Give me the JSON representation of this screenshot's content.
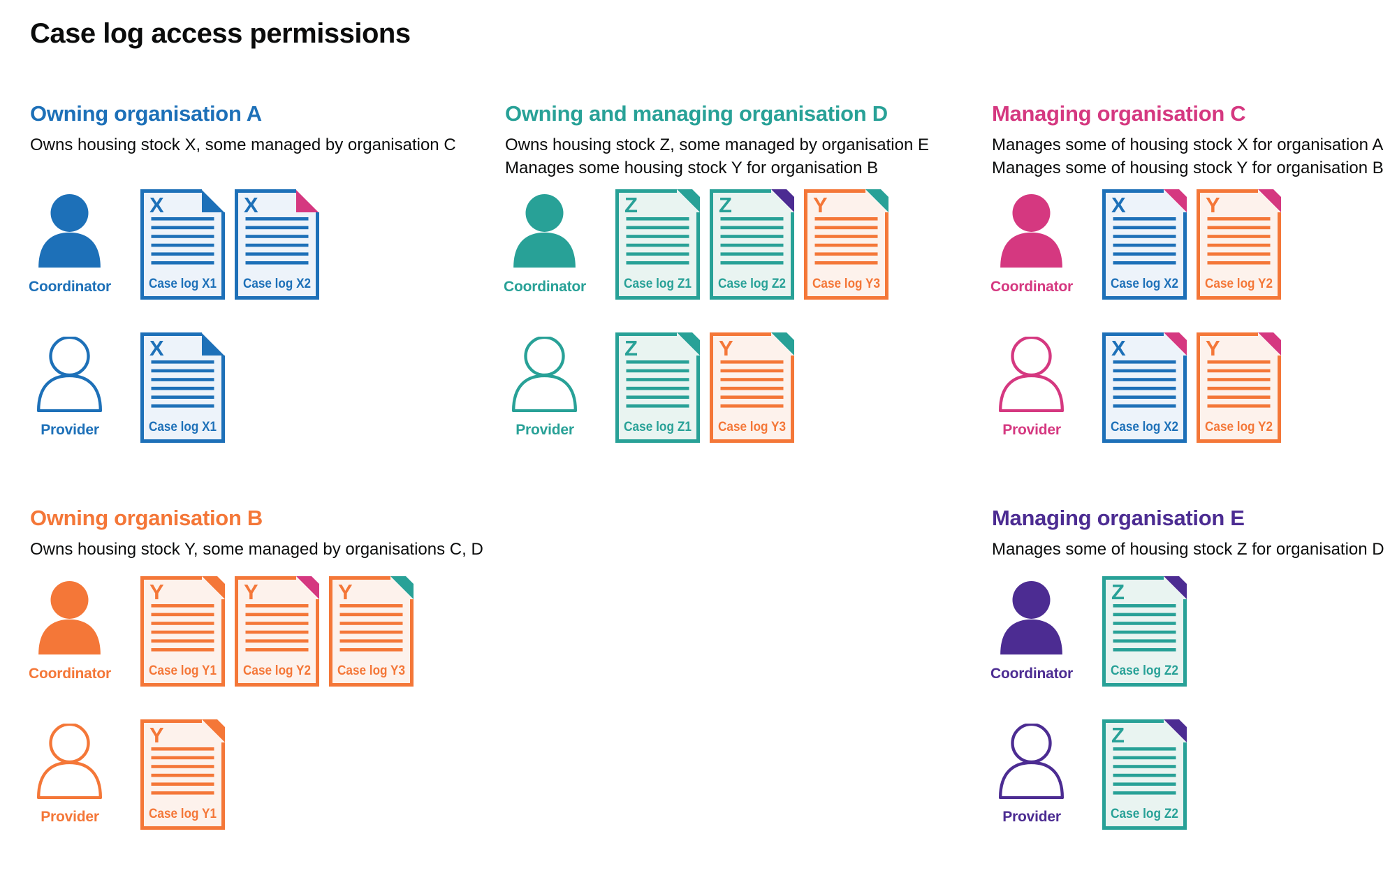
{
  "title": "Case log access permissions",
  "person_labels": {
    "coordinator": "Coordinator",
    "provider": "Provider"
  },
  "palette": {
    "text": "#0b0c0c",
    "background": "#ffffff",
    "blue": "#1d70b8",
    "teal": "#28a197",
    "pink": "#d53880",
    "orange": "#f47738",
    "purple": "#4c2c92"
  },
  "doc_fills": {
    "blue": "#edf3fa",
    "teal": "#e9f4f1",
    "orange": "#fdf2ec"
  },
  "sections": [
    {
      "id": "owning-organisation-a",
      "band": "top",
      "column": "left",
      "color": "blue",
      "fold_style": "flap",
      "heading": "Owning organisation A",
      "description": [
        "Owns housing stock X, some managed by organisation C"
      ],
      "rows": [
        {
          "role": "coordinator",
          "docs": [
            {
              "letter": "X",
              "label": "Case log X1",
              "color": "blue",
              "fold": "blue"
            },
            {
              "letter": "X",
              "label": "Case log X2",
              "color": "blue",
              "fold": "pink"
            }
          ]
        },
        {
          "role": "provider",
          "docs": [
            {
              "letter": "X",
              "label": "Case log X1",
              "color": "blue",
              "fold": "blue"
            }
          ]
        }
      ]
    },
    {
      "id": "owning-and-managing-organisation-d",
      "band": "top",
      "column": "middle",
      "color": "teal",
      "fold_style": "corner",
      "heading": "Owning and managing organisation D",
      "description": [
        "Owns housing stock Z, some managed by organisation E",
        "Manages some housing stock Y for organisation B"
      ],
      "rows": [
        {
          "role": "coordinator",
          "docs": [
            {
              "letter": "Z",
              "label": "Case log Z1",
              "color": "teal",
              "fold": "teal"
            },
            {
              "letter": "Z",
              "label": "Case log Z2",
              "color": "teal",
              "fold": "purple"
            },
            {
              "letter": "Y",
              "label": "Case log Y3",
              "color": "orange",
              "fold": "teal"
            }
          ]
        },
        {
          "role": "provider",
          "docs": [
            {
              "letter": "Z",
              "label": "Case log Z1",
              "color": "teal",
              "fold": "teal"
            },
            {
              "letter": "Y",
              "label": "Case log Y3",
              "color": "orange",
              "fold": "teal"
            }
          ]
        }
      ]
    },
    {
      "id": "managing-organisation-c",
      "band": "top",
      "column": "right",
      "color": "pink",
      "fold_style": "corner",
      "heading": "Managing organisation C",
      "description": [
        "Manages some of housing stock X for organisation A",
        "Manages some of housing stock Y for organisation B"
      ],
      "rows": [
        {
          "role": "coordinator",
          "docs": [
            {
              "letter": "X",
              "label": "Case log X2",
              "color": "blue",
              "fold": "pink"
            },
            {
              "letter": "Y",
              "label": "Case log Y2",
              "color": "orange",
              "fold": "pink"
            }
          ]
        },
        {
          "role": "provider",
          "docs": [
            {
              "letter": "X",
              "label": "Case log X2",
              "color": "blue",
              "fold": "pink"
            },
            {
              "letter": "Y",
              "label": "Case log Y2",
              "color": "orange",
              "fold": "pink"
            }
          ]
        }
      ]
    },
    {
      "id": "owning-organisation-b",
      "band": "bottom",
      "column": "left",
      "color": "orange",
      "fold_style": "corner",
      "heading": "Owning organisation B",
      "description": [
        "Owns housing stock Y, some managed by organisations C, D"
      ],
      "rows": [
        {
          "role": "coordinator",
          "docs": [
            {
              "letter": "Y",
              "label": "Case log Y1",
              "color": "orange",
              "fold": "orange"
            },
            {
              "letter": "Y",
              "label": "Case log Y2",
              "color": "orange",
              "fold": "pink"
            },
            {
              "letter": "Y",
              "label": "Case log Y3",
              "color": "orange",
              "fold": "teal"
            }
          ]
        },
        {
          "role": "provider",
          "docs": [
            {
              "letter": "Y",
              "label": "Case log Y1",
              "color": "orange",
              "fold": "orange"
            }
          ]
        }
      ]
    },
    {
      "id": "managing-organisation-e",
      "band": "bottom",
      "column": "right",
      "color": "purple",
      "fold_style": "corner",
      "heading": "Managing organisation E",
      "description": [
        "Manages some of housing stock Z for organisation D"
      ],
      "rows": [
        {
          "role": "coordinator",
          "docs": [
            {
              "letter": "Z",
              "label": "Case log Z2",
              "color": "teal",
              "fold": "purple"
            }
          ]
        },
        {
          "role": "provider",
          "docs": [
            {
              "letter": "Z",
              "label": "Case log Z2",
              "color": "teal",
              "fold": "purple"
            }
          ]
        }
      ]
    }
  ]
}
